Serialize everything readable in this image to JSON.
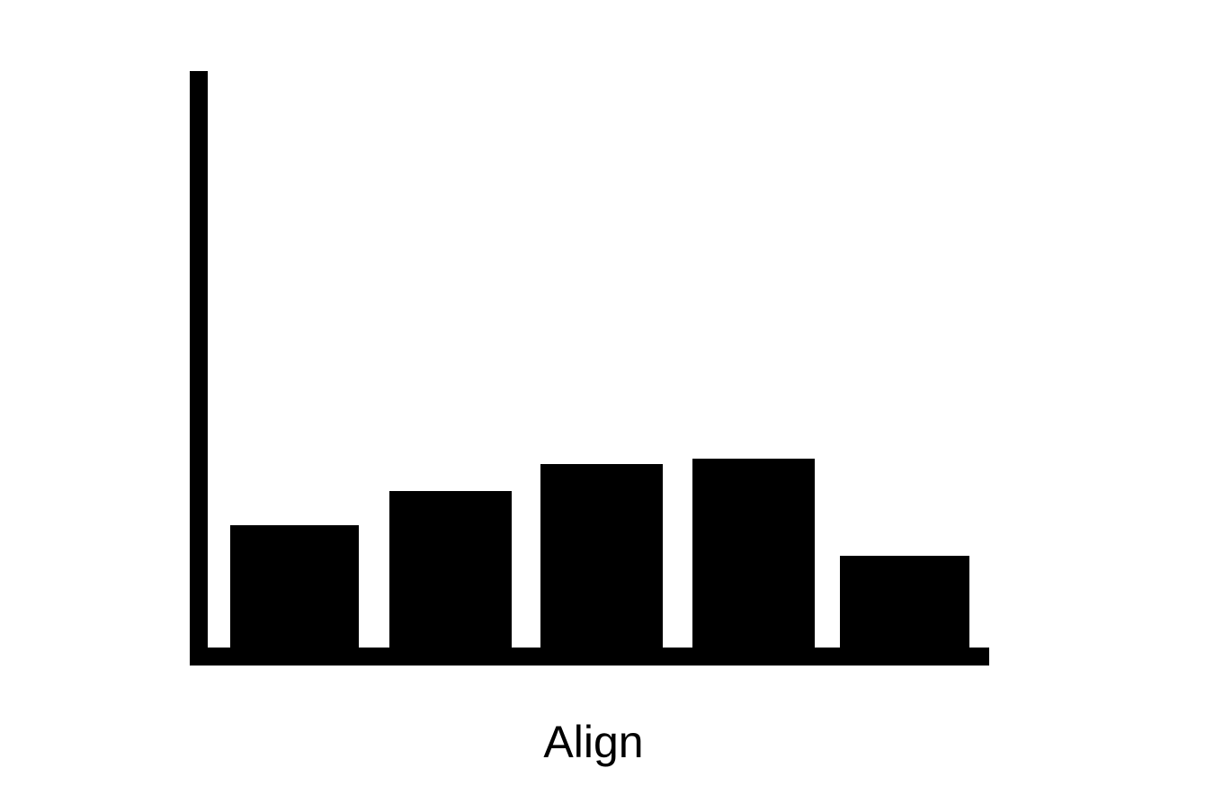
{
  "button": {
    "label": "Align"
  }
}
